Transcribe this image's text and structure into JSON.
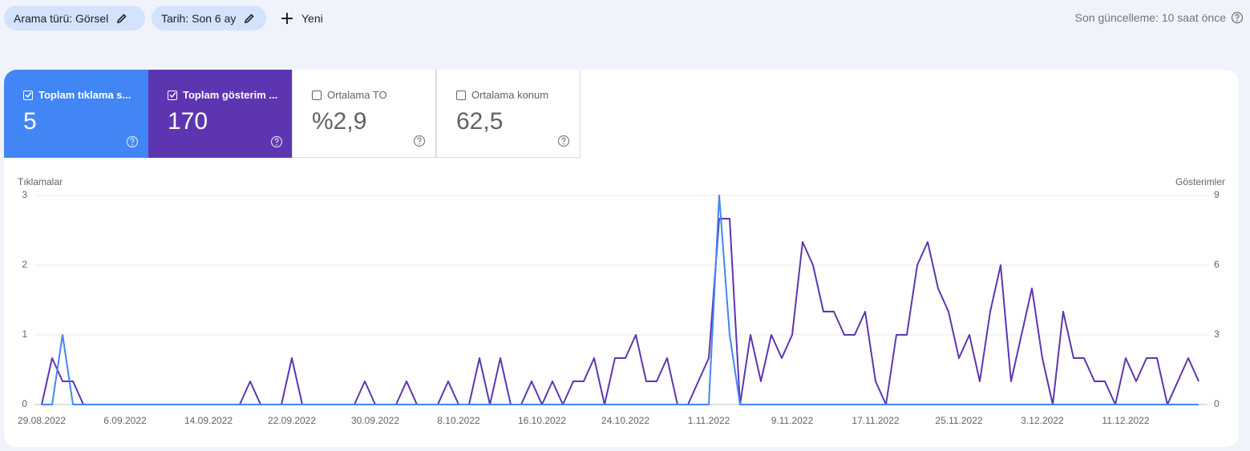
{
  "filters": [
    {
      "label": "Arama türü: Görsel"
    },
    {
      "label": "Tarih: Son 6 ay"
    }
  ],
  "new_button": "Yeni",
  "last_update": "Son güncelleme: 10 saat önce",
  "metrics": [
    {
      "label": "Toplam tıklama s...",
      "value": 5,
      "checked": true,
      "color": "#4285f4"
    },
    {
      "label": "Toplam gösterim ...",
      "value": 170,
      "checked": true,
      "color": "#5e35b1"
    },
    {
      "label": "Ortalama TO",
      "value": "%2,9",
      "checked": false
    },
    {
      "label": "Ortalama konum",
      "value": "62,5",
      "checked": false
    }
  ],
  "chart_data": {
    "type": "line",
    "y_label": "Tıklamalar",
    "y2_label": "Gösterimler",
    "categories": [
      "29.08.2022",
      null,
      null,
      null,
      null,
      null,
      null,
      null,
      "6.09.2022",
      null,
      null,
      null,
      null,
      null,
      null,
      null,
      "14.09.2022",
      null,
      null,
      null,
      null,
      null,
      null,
      null,
      "22.09.2022",
      null,
      null,
      null,
      null,
      null,
      null,
      null,
      "30.09.2022",
      null,
      null,
      null,
      null,
      null,
      null,
      null,
      "8.10.2022",
      null,
      null,
      null,
      null,
      null,
      null,
      null,
      "16.10.2022",
      null,
      null,
      null,
      null,
      null,
      null,
      null,
      "24.10.2022",
      null,
      null,
      null,
      null,
      null,
      null,
      null,
      "1.11.2022",
      null,
      null,
      null,
      null,
      null,
      null,
      null,
      "9.11.2022",
      null,
      null,
      null,
      null,
      null,
      null,
      null,
      "17.11.2022",
      null,
      null,
      null,
      null,
      null,
      null,
      null,
      "25.11.2022",
      null,
      null,
      null,
      null,
      null,
      null,
      null,
      "3.12.2022",
      null,
      null,
      null,
      null,
      null,
      null,
      null,
      "11.12.2022",
      null,
      null,
      null,
      null,
      null,
      null,
      null
    ],
    "series": [
      {
        "color": "#5e35b1",
        "axis": "y2",
        "values": [
          0,
          2,
          1,
          1,
          0,
          0,
          0,
          0,
          0,
          0,
          0,
          0,
          0,
          0,
          0,
          0,
          0,
          0,
          0,
          0,
          1,
          0,
          0,
          0,
          2,
          0,
          0,
          0,
          0,
          0,
          0,
          1,
          0,
          0,
          0,
          1,
          0,
          0,
          0,
          1,
          0,
          0,
          2,
          0,
          2,
          0,
          0,
          1,
          0,
          1,
          0,
          1,
          1,
          2,
          0,
          2,
          2,
          3,
          1,
          1,
          2,
          0,
          0,
          1,
          2,
          8,
          8,
          0,
          3,
          1,
          3,
          2,
          3,
          7,
          6,
          4,
          4,
          3,
          3,
          4,
          1,
          0,
          3,
          3,
          6,
          7,
          5,
          4,
          2,
          3,
          1,
          4,
          6,
          1,
          3,
          5,
          2,
          0,
          4,
          2,
          2,
          1,
          1,
          0,
          2,
          1,
          2,
          2,
          0,
          1,
          2,
          1
        ]
      },
      {
        "color": "#4285f4",
        "values": [
          0,
          0,
          1,
          0,
          0,
          0,
          0,
          0,
          0,
          0,
          0,
          0,
          0,
          0,
          0,
          0,
          0,
          0,
          0,
          0,
          0,
          0,
          0,
          0,
          0,
          0,
          0,
          0,
          0,
          0,
          0,
          0,
          0,
          0,
          0,
          0,
          0,
          0,
          0,
          0,
          0,
          0,
          0,
          0,
          0,
          0,
          0,
          0,
          0,
          0,
          0,
          0,
          0,
          0,
          0,
          0,
          0,
          0,
          0,
          0,
          0,
          0,
          0,
          0,
          0,
          3,
          1,
          0,
          0,
          0,
          0,
          0,
          0,
          0,
          0,
          0,
          0,
          0,
          0,
          0,
          0,
          0,
          0,
          0,
          0,
          0,
          0,
          0,
          0,
          0,
          0,
          0,
          0,
          0,
          0,
          0,
          0,
          0,
          0,
          0,
          0,
          0,
          0,
          0,
          0,
          0,
          0,
          0,
          0,
          0,
          0,
          0
        ]
      }
    ],
    "ylim": [
      0,
      3
    ],
    "yticks": [
      0,
      1,
      2,
      3
    ],
    "y2lim": [
      0,
      9
    ],
    "y2ticks": [
      0,
      3,
      6,
      9
    ],
    "grid": true
  }
}
